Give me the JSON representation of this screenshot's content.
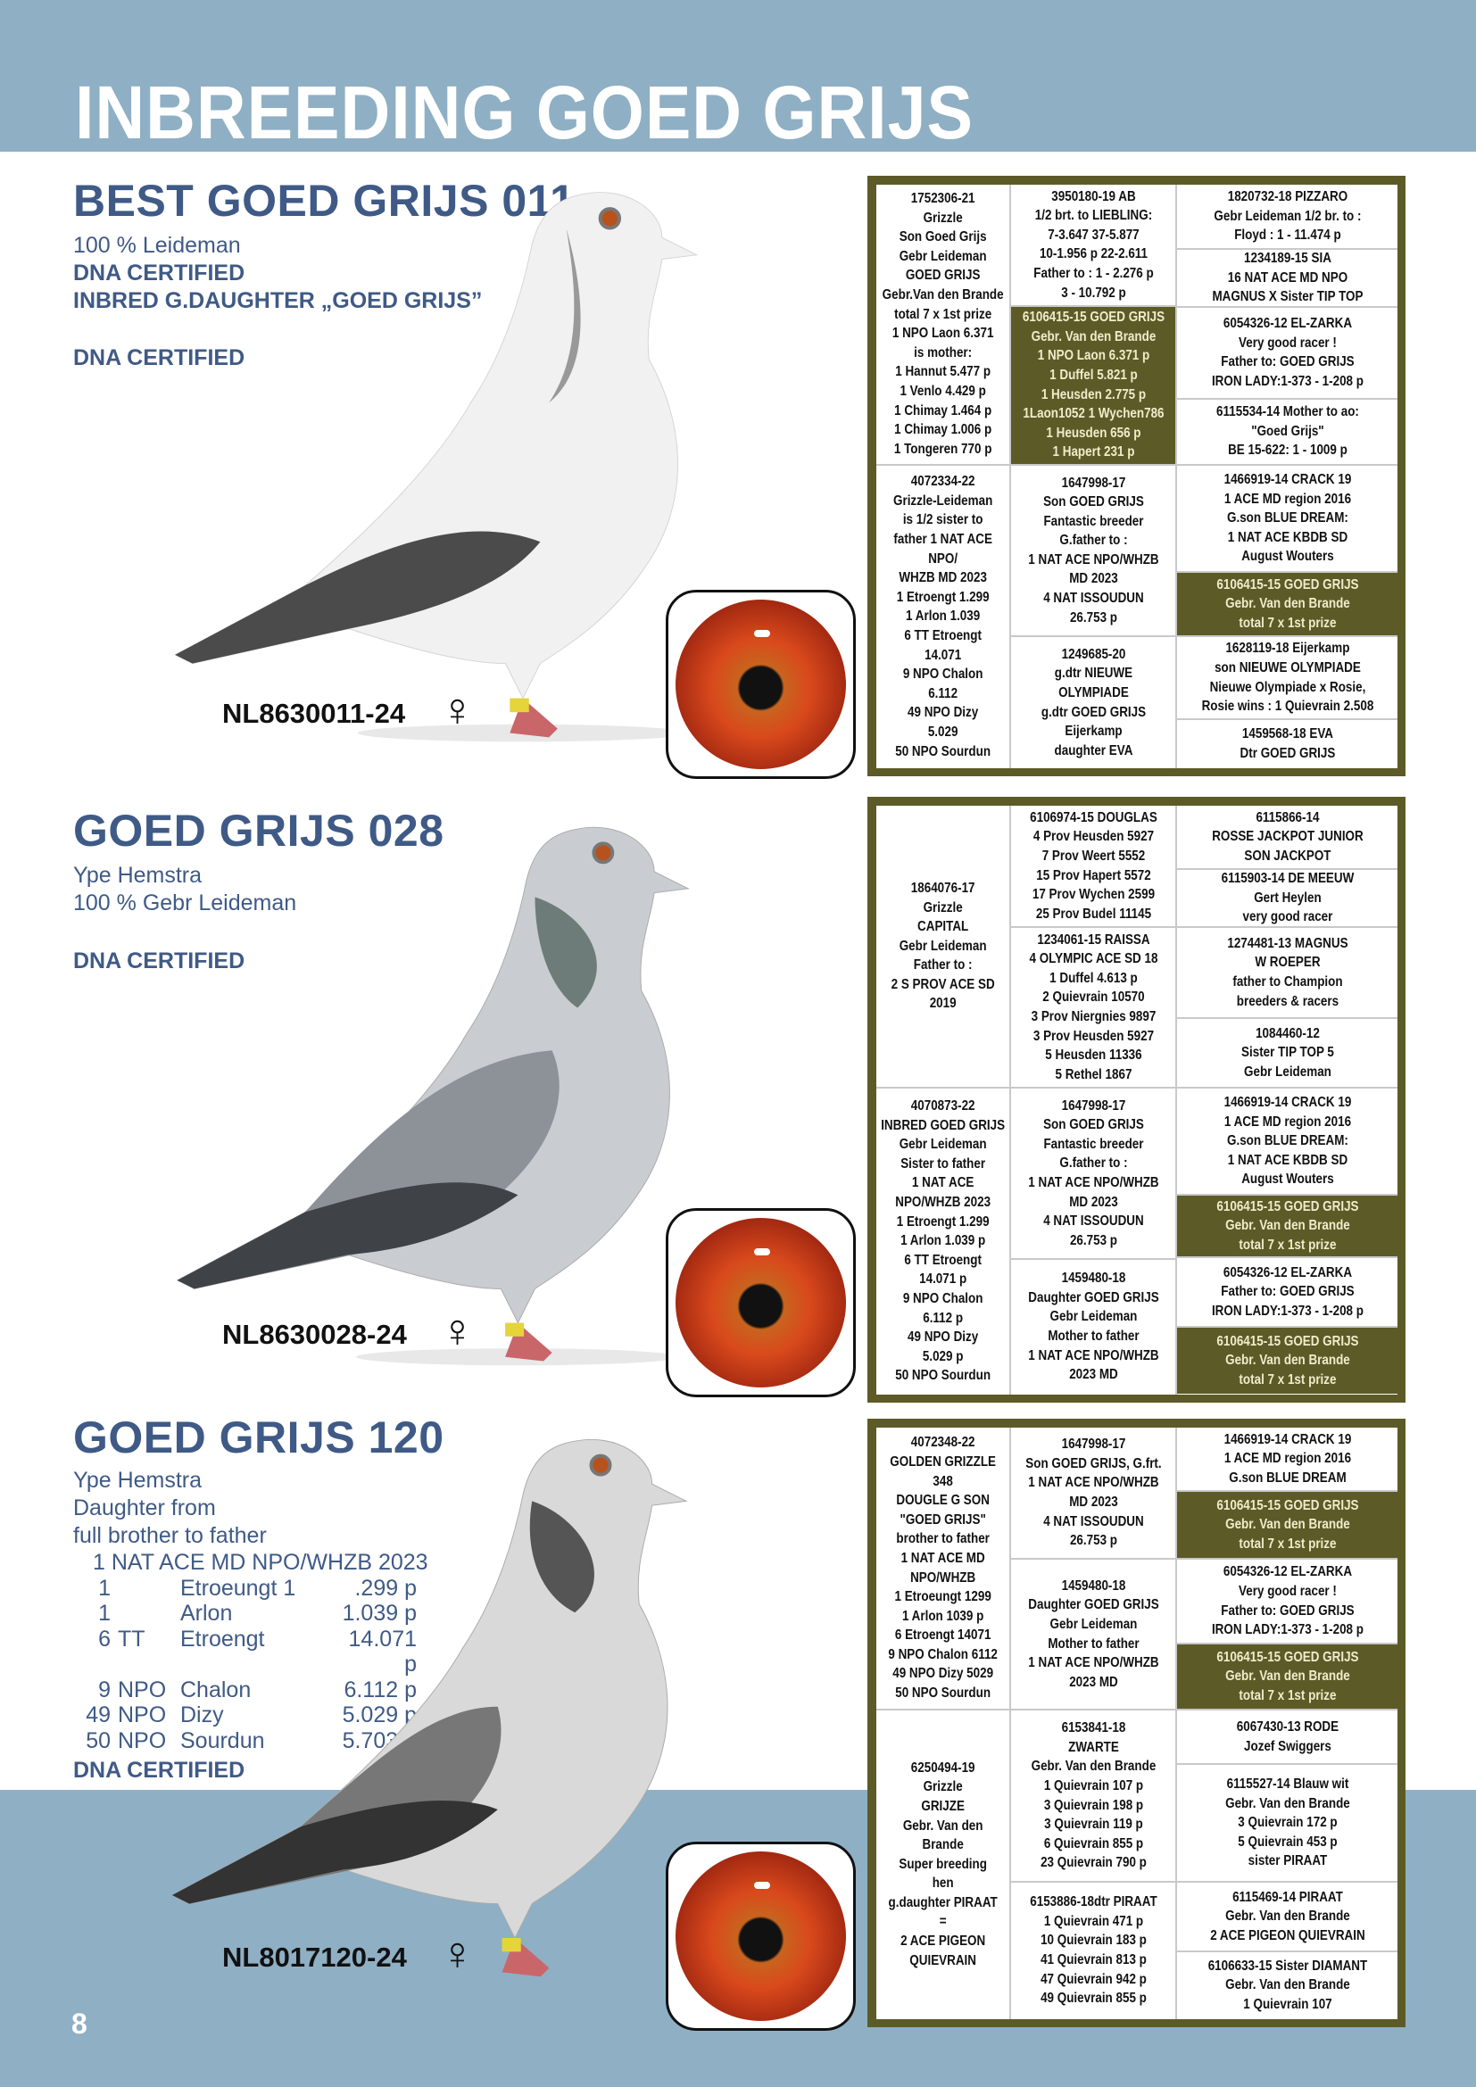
{
  "header": {
    "title": "INBREEDING GOED GRIJS"
  },
  "page_number": "8",
  "colors": {
    "band": "#8fafc4",
    "text_blue": "#3f5a86",
    "olive": "#5c5b27"
  },
  "pigeons": [
    {
      "name": "BEST GOED GRIJS 011",
      "lines": [
        "100 % Leideman",
        "DNA CERTIFIED",
        "INBRED G.DAUGHTER „GOED GRIJS”"
      ],
      "dna": "DNA CERTIFIED",
      "ring": "NL8630011-24",
      "sex_symbol": "♀",
      "pedigree": {
        "col1": [
          {
            "lines": [
              "1752306-21",
              "Grizzle",
              "Son Goed Grijs",
              "Gebr Leideman",
              "GOED GRIJS",
              "Gebr.Van den Brande",
              "total 7 x 1st prize",
              "1 NPO Laon 6.371",
              "is mother:",
              "1 Hannut 5.477 p",
              "1 Venlo 4.429 p",
              "1 Chimay 1.464 p",
              "1 Chimay 1.006 p",
              "1 Tongeren 770 p"
            ]
          },
          {
            "lines": [
              "4072334-22",
              "Grizzle-Leideman",
              "is 1/2 sister to",
              "father 1 NAT ACE",
              "NPO/",
              "WHZB MD 2023",
              "1 Etroengt 1.299",
              "1 Arlon 1.039",
              "6 TT Etroengt",
              "14.071",
              "9 NPO Chalon",
              "6.112",
              "49 NPO Dizy",
              "5.029",
              "50 NPO Sourdun"
            ]
          }
        ],
        "col2": [
          {
            "lines": [
              "3950180-19  AB",
              "1/2 brt. to LIEBLING:",
              "7-3.647  37-5.877",
              "10-1.956 p  22-2.611",
              "Father to : 1 - 2.276 p",
              "3 - 10.792 p"
            ]
          },
          {
            "dark": true,
            "lines": [
              "6106415-15 GOED GRIJS",
              "Gebr. Van den Brande",
              "1 NPO Laon 6.371 p",
              "1 Duffel 5.821 p",
              "1 Heusden 2.775 p",
              "1Laon1052 1 Wychen786",
              "1 Heusden 656 p",
              "1 Hapert 231 p"
            ]
          },
          {
            "lines": [
              "1647998-17",
              "Son GOED GRIJS",
              "Fantastic breeder",
              "G.father to :",
              "1 NAT ACE NPO/WHZB",
              "MD 2023",
              "4 NAT ISSOUDUN",
              "26.753 p"
            ]
          },
          {
            "lines": [
              "1249685-20",
              "g.dtr NIEUWE",
              "OLYMPIADE",
              "g.dtr GOED GRIJS",
              "Eijerkamp",
              "daughter EVA"
            ]
          }
        ],
        "col3": [
          {
            "lines": [
              "1820732-18 PIZZARO",
              "Gebr Leideman 1/2 br. to :",
              "Floyd : 1 - 11.474 p"
            ]
          },
          {
            "lines": [
              "1234189-15  SIA",
              "16 NAT ACE MD NPO",
              "MAGNUS X Sister TIP TOP"
            ]
          },
          {
            "lines": [
              "6054326-12 EL-ZARKA",
              "Very good racer !",
              "Father to: GOED GRIJS",
              "IRON LADY:1-373  - 1-208 p"
            ]
          },
          {
            "lines": [
              "6115534-14 Mother to ao:",
              "\"Goed Grijs\"",
              "BE 15-622: 1 - 1009 p"
            ]
          },
          {
            "lines": [
              "1466919-14 CRACK 19",
              "1 ACE MD region 2016",
              "G.son BLUE DREAM:",
              "1 NAT ACE KBDB SD",
              "August Wouters"
            ]
          },
          {
            "dark": true,
            "lines": [
              "6106415-15 GOED GRIJS",
              "Gebr. Van den Brande",
              "total 7 x 1st prize"
            ]
          },
          {
            "lines": [
              "1628119-18 Eijerkamp",
              "son NIEUWE OLYMPIADE",
              "Nieuwe Olympiade x Rosie,",
              "Rosie wins : 1 Quievrain 2.508"
            ]
          },
          {
            "lines": [
              "1459568-18  EVA",
              "Dtr GOED GRIJS"
            ]
          }
        ]
      }
    },
    {
      "name": "GOED GRIJS 028",
      "lines": [
        "Ype Hemstra",
        "100 % Gebr Leideman"
      ],
      "dna": "DNA CERTIFIED",
      "ring": "NL8630028-24",
      "sex_symbol": "♀",
      "pedigree": {
        "col1": [
          {
            "lines": [
              "1864076-17",
              "Grizzle",
              "CAPITAL",
              "Gebr Leideman",
              "Father to :",
              "2 S PROV ACE SD",
              "2019"
            ]
          },
          {
            "lines": [
              "4070873-22",
              "INBRED GOED GRIJS",
              "Gebr Leideman",
              "Sister to father",
              "1 NAT ACE",
              "NPO/WHZB 2023",
              "1 Etroengt 1.299",
              "1 Arlon 1.039 p",
              "6 TT Etroengt",
              "14.071 p",
              "9 NPO Chalon",
              "6.112 p",
              "49 NPO Dizy",
              "5.029 p",
              "50 NPO Sourdun"
            ]
          }
        ],
        "col2": [
          {
            "lines": [
              "6106974-15 DOUGLAS",
              "4 Prov Heusden 5927",
              "7 Prov Weert 5552",
              "15 Prov Hapert 5572",
              "17 Prov Wychen 2599",
              "25 Prov Budel 11145"
            ]
          },
          {
            "lines": [
              "1234061-15 RAISSA",
              "4 OLYMPIC ACE SD 18",
              "1 Duffel 4.613 p",
              "2 Quievrain 10570",
              "3 Prov Niergnies 9897",
              "3 Prov Heusden 5927",
              "5 Heusden 11336",
              "5 Rethel 1867"
            ]
          },
          {
            "lines": [
              "1647998-17",
              "Son GOED GRIJS",
              "Fantastic breeder",
              "G.father to :",
              "1 NAT ACE NPO/WHZB",
              "MD 2023",
              "4 NAT ISSOUDUN",
              "26.753 p"
            ]
          },
          {
            "lines": [
              "1459480-18",
              "Daughter GOED GRIJS",
              "Gebr Leideman",
              "Mother to father",
              "1 NAT ACE NPO/WHZB",
              "2023 MD"
            ]
          }
        ],
        "col3": [
          {
            "lines": [
              "6115866-14",
              "ROSSE JACKPOT JUNIOR",
              "SON JACKPOT"
            ]
          },
          {
            "lines": [
              "6115903-14 DE MEEUW",
              "Gert Heylen",
              "very good racer"
            ]
          },
          {
            "lines": [
              "1274481-13 MAGNUS",
              "W ROEPER",
              "father to Champion",
              "breeders & racers"
            ]
          },
          {
            "lines": [
              "1084460-12",
              "Sister TIP TOP 5",
              "Gebr Leideman"
            ]
          },
          {
            "lines": [
              "1466919-14 CRACK 19",
              "1 ACE MD region 2016",
              "G.son BLUE DREAM:",
              "1 NAT ACE KBDB SD",
              "August Wouters"
            ]
          },
          {
            "dark": true,
            "lines": [
              "6106415-15 GOED GRIJS",
              "Gebr. Van den Brande",
              "total 7 x 1st prize"
            ]
          },
          {
            "lines": [
              "6054326-12 EL-ZARKA",
              "Father to: GOED GRIJS",
              "IRON LADY:1-373  - 1-208 p"
            ]
          },
          {
            "dark": true,
            "lines": [
              "6106415-15 GOED GRIJS",
              "Gebr. Van den Brande",
              "total 7 x 1st prize"
            ]
          }
        ]
      }
    },
    {
      "name": "GOED GRIJS 120",
      "lines": [
        "Ype Hemstra",
        "Daughter from",
        "full brother to father"
      ],
      "results_heading": "1  NAT ACE MD NPO/WHZB 2023",
      "results": [
        [
          "1",
          "",
          "Etroeungt 1",
          ".299 p"
        ],
        [
          "1",
          "",
          "Arlon",
          "1.039 p"
        ],
        [
          "6",
          "TT",
          "Etroengt",
          "14.071 p"
        ],
        [
          "9",
          "NPO",
          "Chalon",
          "6.112 p"
        ],
        [
          "49",
          "NPO",
          "Dizy",
          "5.029 p"
        ],
        [
          "50",
          "NPO",
          "Sourdun",
          "5.703 p"
        ]
      ],
      "dna": "DNA CERTIFIED",
      "ring": "NL8017120-24",
      "sex_symbol": "♀",
      "pedigree": {
        "col1": [
          {
            "lines": [
              "4072348-22",
              "GOLDEN GRIZZLE",
              "348",
              "DOUGLE G SON",
              "\"GOED GRIJS\"",
              "brother to father",
              "1 NAT ACE MD",
              "NPO/WHZB",
              "1 Etroeungt 1299",
              "1 Arlon 1039 p",
              "6 Etroengt 14071",
              "9 NPO Chalon 6112",
              "49 NPO Dizy 5029",
              "50 NPO Sourdun"
            ]
          },
          {
            "lines": [
              "6250494-19",
              "Grizzle",
              "GRIJZE",
              "Gebr. Van den",
              "Brande",
              "Super breeding",
              "hen",
              "g.daughter PIRAAT",
              "=",
              "2 ACE PIGEON",
              "QUIEVRAIN"
            ]
          }
        ],
        "col2": [
          {
            "lines": [
              "1647998-17",
              "Son GOED GRIJS, G.frt.",
              "1 NAT ACE NPO/WHZB",
              "MD 2023",
              "4 NAT ISSOUDUN",
              "26.753 p"
            ]
          },
          {
            "lines": [
              "1459480-18",
              "Daughter GOED GRIJS",
              "Gebr Leideman",
              "Mother to father",
              "1 NAT ACE NPO/WHZB",
              "2023 MD"
            ]
          },
          {
            "lines": [
              "6153841-18",
              "ZWARTE",
              "Gebr. Van den Brande",
              "1 Quievrain 107 p",
              "3 Quievrain 198 p",
              "3 Quievrain 119 p",
              "6 Quievrain 855 p",
              "23 Quievrain 790 p"
            ]
          },
          {
            "lines": [
              "6153886-18dtr PIRAAT",
              "1 Quievrain 471 p",
              "10 Quievrain 183 p",
              "41 Quievrain 813 p",
              "47 Quievrain 942 p",
              "49 Quievrain 855 p"
            ]
          }
        ],
        "col3": [
          {
            "lines": [
              "1466919-14 CRACK 19",
              "1 ACE MD region 2016",
              "G.son BLUE DREAM"
            ]
          },
          {
            "dark": true,
            "lines": [
              "6106415-15 GOED GRIJS",
              "Gebr. Van den Brande",
              "total 7 x 1st prize"
            ]
          },
          {
            "lines": [
              "6054326-12 EL-ZARKA",
              "Very good racer !",
              "Father to: GOED GRIJS",
              "IRON LADY:1-373  - 1-208 p"
            ]
          },
          {
            "dark": true,
            "lines": [
              "6106415-15 GOED GRIJS",
              "Gebr. Van den Brande",
              "total 7 x 1st prize"
            ]
          },
          {
            "lines": [
              "6067430-13 RODE",
              "Jozef Swiggers"
            ]
          },
          {
            "lines": [
              "6115527-14 Blauw wit",
              "Gebr. Van den Brande",
              "3 Quievrain 172 p",
              "5 Quievrain 453 p",
              "sister PIRAAT"
            ]
          },
          {
            "lines": [
              "6115469-14 PIRAAT",
              "Gebr. Van den Brande",
              "2 ACE PIGEON QUIEVRAIN"
            ]
          },
          {
            "lines": [
              "6106633-15 Sister DIAMANT",
              "Gebr. Van den Brande",
              "1 Quievrain 107"
            ]
          }
        ]
      }
    }
  ]
}
